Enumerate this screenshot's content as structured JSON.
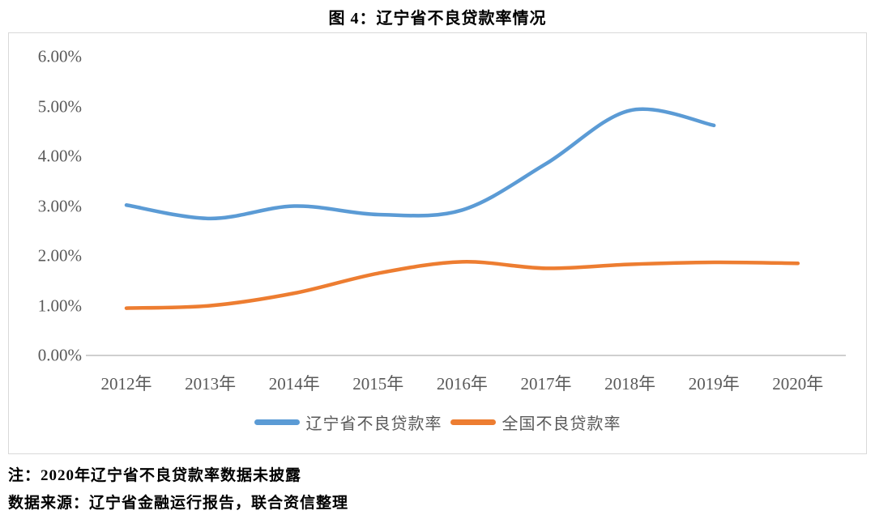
{
  "title": "图 4：辽宁省不良贷款率情况",
  "notes": {
    "line1": "注：2020年辽宁省不良贷款率数据未披露",
    "line2": "数据来源：辽宁省金融运行报告，联合资信整理"
  },
  "colors": {
    "liaoning_line": "#5B9BD5",
    "national_line": "#ED7D31",
    "axis_label": "#595959",
    "axis_line": "#BFBFBF",
    "chart_border": "#D9D9D9"
  },
  "chart_data": {
    "type": "line",
    "title": "图 4：辽宁省不良贷款率情况",
    "categories": [
      "2012年",
      "2013年",
      "2014年",
      "2015年",
      "2016年",
      "2017年",
      "2018年",
      "2019年",
      "2020年"
    ],
    "series": [
      {
        "name": "辽宁省不良贷款率",
        "color": "#5B9BD5",
        "values": [
          3.02,
          2.75,
          3.0,
          2.83,
          2.92,
          3.85,
          4.92,
          4.62,
          null
        ]
      },
      {
        "name": "全国不良贷款率",
        "color": "#ED7D31",
        "values": [
          0.95,
          1.0,
          1.25,
          1.65,
          1.88,
          1.75,
          1.83,
          1.87,
          1.85
        ]
      }
    ],
    "ylim": [
      0,
      6
    ],
    "y_tick_step": 1,
    "y_tick_labels": [
      "0.00%",
      "1.00%",
      "2.00%",
      "3.00%",
      "4.00%",
      "5.00%",
      "6.00%"
    ],
    "grid": false,
    "smooth": true,
    "legend_position": "bottom"
  }
}
